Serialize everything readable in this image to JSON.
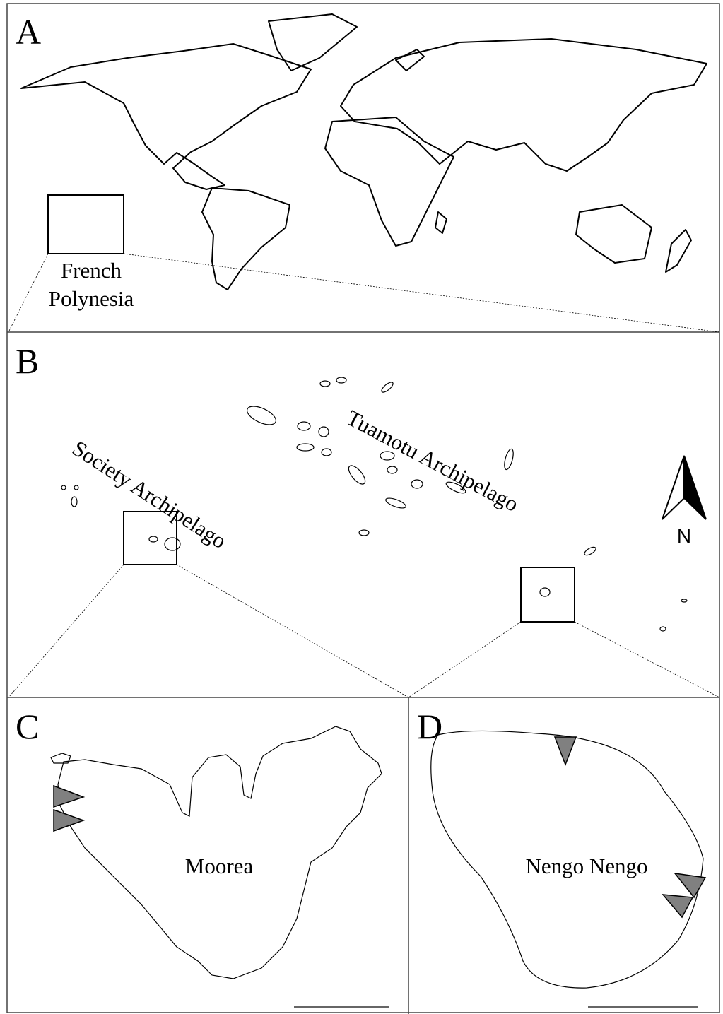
{
  "panels": [
    {
      "label": "A",
      "place_labels": [
        "French",
        "Polynesia"
      ]
    },
    {
      "label": "B",
      "place_labels": [
        "Society Archipelago",
        "Tuamotu Archipelago"
      ],
      "north_label": "N"
    },
    {
      "label": "C",
      "place_labels": [
        "Moorea"
      ]
    },
    {
      "label": "D",
      "place_labels": [
        "Nengo Nengo"
      ]
    }
  ]
}
